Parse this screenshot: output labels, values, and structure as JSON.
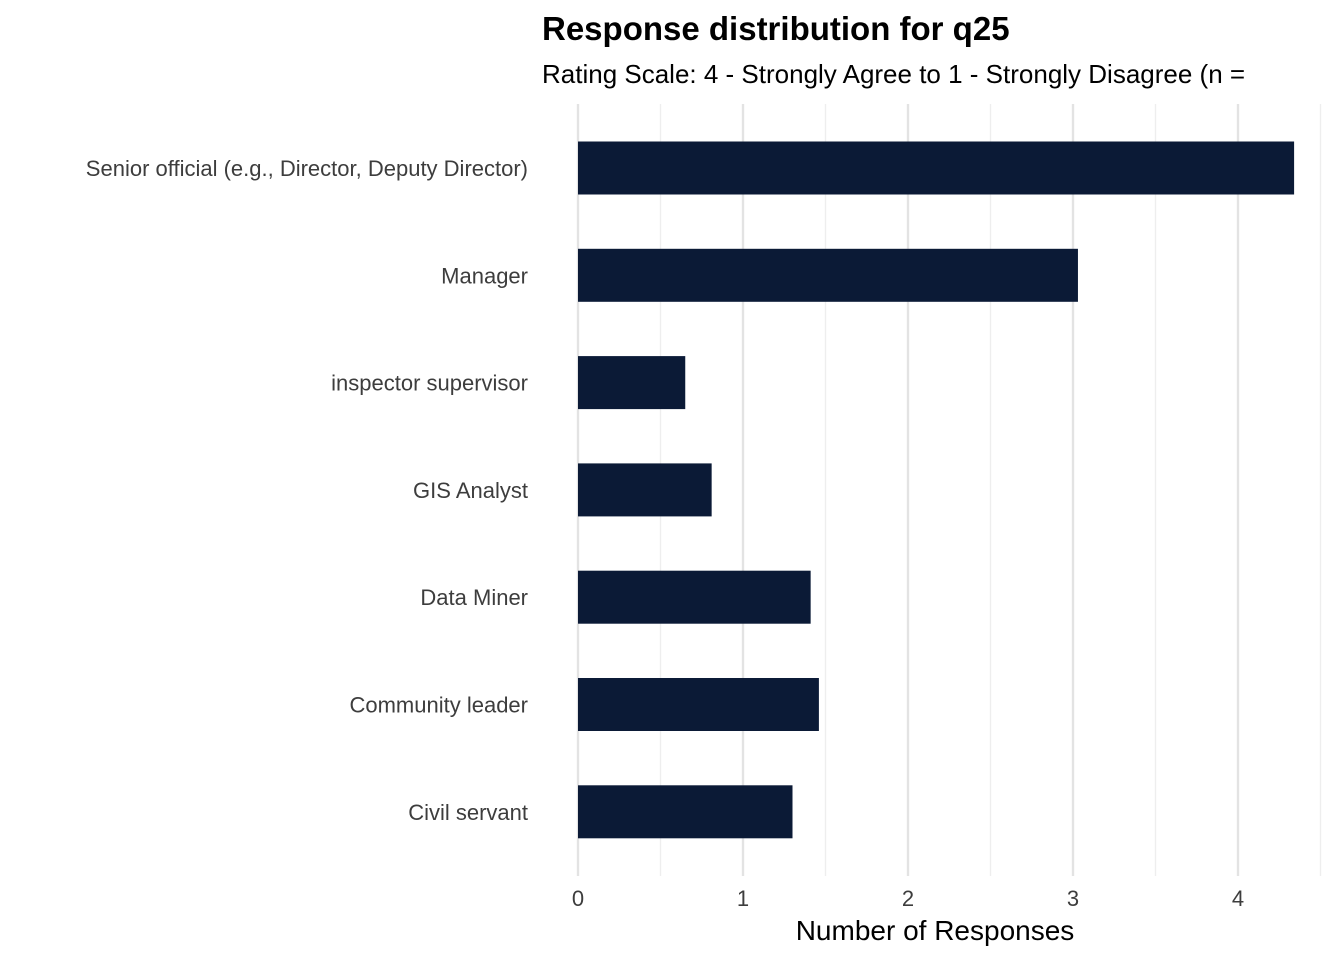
{
  "chart_data": {
    "type": "bar",
    "orientation": "horizontal",
    "title": "Response distribution for q25",
    "subtitle": "Rating Scale: 4 - Strongly Agree to 1 - Strongly Disagree (n =",
    "xlabel": "Number of Responses",
    "ylabel": "",
    "categories": [
      "Senior official  (e.g., Director, Deputy Director)",
      "Manager",
      "inspector supervisor",
      "GIS Analyst",
      "Data Miner",
      "Community leader",
      "Civil servant"
    ],
    "values": [
      4.34,
      3.03,
      0.65,
      0.81,
      1.41,
      1.46,
      1.3
    ],
    "xlim": [
      0,
      4.5
    ],
    "xticks": [
      0,
      1,
      2,
      3,
      4
    ],
    "grid": true,
    "legend": "none",
    "bar_color": "#0b1a36"
  }
}
